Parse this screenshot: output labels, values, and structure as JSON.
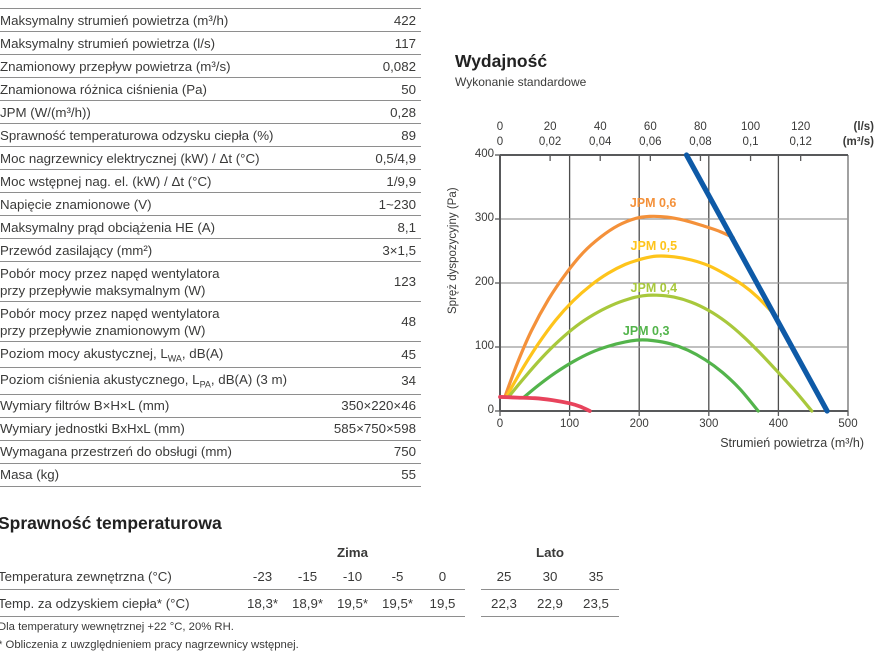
{
  "spec_table": {
    "rows": [
      {
        "label": "Maksymalny strumień powietrza (m³/h)",
        "value": "422"
      },
      {
        "label": "Maksymalny strumień powietrza (l/s)",
        "value": "117"
      },
      {
        "label": "Znamionowy przepływ powietrza (m³/s)",
        "value": "0,082"
      },
      {
        "label": "Znamionowa różnica ciśnienia (Pa)",
        "value": "50"
      },
      {
        "label": "JPM (W/(m³/h))",
        "value": "0,28"
      },
      {
        "label": "Sprawność temperaturowa odzysku ciepła (%)",
        "value": "89"
      },
      {
        "label": "Moc nagrzewnicy elektrycznej (kW) / Δt (°C)",
        "value": "0,5/4,9"
      },
      {
        "label": "Moc wstępnej nag. el. (kW) / Δt (°C)",
        "value": "1/9,9"
      },
      {
        "label": "Napięcie znamionowe (V)",
        "value": "1~230"
      },
      {
        "label": "Maksymalny prąd obciążenia HE (A)",
        "value": "8,1"
      },
      {
        "label": "Przewód zasilający (mm²)",
        "value": "3×1,5"
      },
      {
        "label": "Pobór mocy przez napęd wentylatora\nprzy przepływie maksymalnym (W)",
        "value": "123"
      },
      {
        "label": "Pobór mocy przez napęd wentylatora\nprzy przepływie znamionowym (W)",
        "value": "48"
      },
      {
        "label": "Poziom mocy akustycznej, L[WA], dB(A)",
        "value": "45"
      },
      {
        "label": "Poziom ciśnienia akustycznego, L[PA], dB(A) (3 m)",
        "value": "34"
      },
      {
        "label": "Wymiary filtrów B×H×L (mm)",
        "value": "350×220×46"
      },
      {
        "label": "Wymiary jednostki BxHxL (mm)",
        "value": "585×750×598"
      },
      {
        "label": "Wymagana przestrzeń do obsługi (mm)",
        "value": "750"
      },
      {
        "label": "Masa (kg)",
        "value": "55"
      }
    ]
  },
  "chart": {
    "title": "Wydajność",
    "subtitle": "Wykonanie standardowe",
    "y_axis_label": "Spręż dyspozycyjny (Pa)",
    "x_axis_label": "Strumień powietrza (m³/h)",
    "top_unit_ls": "(l/s)",
    "top_unit_m3s": "(m³/s)"
  },
  "chart_data": {
    "type": "line",
    "title": "Wydajność",
    "subtitle": "Wykonanie standardowe",
    "xlabel": "Strumień powietrza (m³/h)",
    "ylabel": "Spręż dyspozycyjny (Pa)",
    "xlim": [
      0,
      500
    ],
    "ylim": [
      0,
      400
    ],
    "grid": true,
    "x_ticks_bottom": [
      0,
      100,
      200,
      300,
      400,
      500
    ],
    "y_ticks": [
      400,
      300,
      200,
      100,
      0
    ],
    "top_axis": {
      "positions_m3h": [
        0,
        72,
        144,
        216,
        288,
        360,
        432
      ],
      "ticks_ls": [
        "0",
        "20",
        "40",
        "60",
        "80",
        "100",
        "120"
      ],
      "ticks_m3s": [
        "0",
        "0,02",
        "0,04",
        "0,06",
        "0,08",
        "0,1",
        "0,12"
      ],
      "unit_ls": "(l/s)",
      "unit_m3s": "(m³/s)"
    },
    "series": [
      {
        "name": "JPM 0,6",
        "color": "#F4913A",
        "width": 3.2,
        "label_at": [
          220,
          325
        ],
        "points": [
          [
            8,
            25
          ],
          [
            25,
            75
          ],
          [
            45,
            125
          ],
          [
            70,
            175
          ],
          [
            95,
            215
          ],
          [
            120,
            248
          ],
          [
            145,
            272
          ],
          [
            170,
            290
          ],
          [
            195,
            301
          ],
          [
            215,
            304
          ],
          [
            240,
            303
          ],
          [
            265,
            298
          ],
          [
            290,
            290
          ],
          [
            315,
            281
          ],
          [
            335,
            271
          ]
        ]
      },
      {
        "name": "JPM 0,5",
        "color": "#FEC41B",
        "width": 3.2,
        "label_at": [
          221,
          258
        ],
        "points": [
          [
            10,
            24
          ],
          [
            30,
            62
          ],
          [
            55,
            105
          ],
          [
            80,
            142
          ],
          [
            105,
            172
          ],
          [
            130,
            196
          ],
          [
            155,
            215
          ],
          [
            180,
            229
          ],
          [
            205,
            238
          ],
          [
            225,
            242
          ],
          [
            250,
            241
          ],
          [
            275,
            236
          ],
          [
            300,
            227
          ],
          [
            325,
            213
          ],
          [
            350,
            196
          ],
          [
            370,
            178
          ],
          [
            395,
            150
          ]
        ]
      },
      {
        "name": "JPM 0,4",
        "color": "#A8C83C",
        "width": 3.2,
        "label_at": [
          221,
          192
        ],
        "points": [
          [
            13,
            23
          ],
          [
            35,
            52
          ],
          [
            60,
            83
          ],
          [
            85,
            110
          ],
          [
            110,
            133
          ],
          [
            135,
            151
          ],
          [
            160,
            165
          ],
          [
            185,
            175
          ],
          [
            205,
            180
          ],
          [
            225,
            181
          ],
          [
            250,
            178
          ],
          [
            275,
            170
          ],
          [
            300,
            157
          ],
          [
            325,
            139
          ],
          [
            350,
            116
          ],
          [
            375,
            89
          ],
          [
            400,
            60
          ],
          [
            425,
            30
          ],
          [
            448,
            0
          ]
        ]
      },
      {
        "name": "JPM 0,3",
        "color": "#53B44B",
        "width": 3.2,
        "label_at": [
          210,
          125
        ],
        "points": [
          [
            35,
            22
          ],
          [
            55,
            40
          ],
          [
            80,
            60
          ],
          [
            105,
            77
          ],
          [
            130,
            91
          ],
          [
            155,
            101
          ],
          [
            180,
            108
          ],
          [
            200,
            111
          ],
          [
            220,
            110
          ],
          [
            245,
            105
          ],
          [
            270,
            95
          ],
          [
            295,
            80
          ],
          [
            320,
            60
          ],
          [
            345,
            34
          ],
          [
            371,
            0
          ]
        ]
      },
      {
        "name": "max-limit-line",
        "color": "#0E5AA7",
        "width": 5.2,
        "label_at": null,
        "points": [
          [
            268,
            400
          ],
          [
            470,
            0
          ]
        ]
      },
      {
        "name": "min-limit-line",
        "color": "#E8435C",
        "width": 3.8,
        "label_at": null,
        "points": [
          [
            0,
            22
          ],
          [
            25,
            21
          ],
          [
            50,
            20
          ],
          [
            75,
            17
          ],
          [
            100,
            12
          ],
          [
            115,
            7
          ],
          [
            129,
            0
          ]
        ]
      }
    ]
  },
  "efficiency": {
    "heading": "Sprawność temperaturowa",
    "group_winter": "Zima",
    "group_summer": "Lato",
    "row1_label": "Temperatura zewnętrzna (°C)",
    "row2_label": "Temp. za odzyskiem ciepła* (°C)",
    "winter_temps": [
      "-23",
      "-15",
      "-10",
      "-5",
      "0"
    ],
    "winter_values": [
      "18,3*",
      "18,9*",
      "19,5*",
      "19,5*",
      "19,5"
    ],
    "summer_temps": [
      "25",
      "30",
      "35"
    ],
    "summer_values": [
      "22,3",
      "22,9",
      "23,5"
    ]
  },
  "footnotes": [
    "Dla temperatury wewnętrznej +22 °C, 20% RH.",
    "* Obliczenia z uwzględnieniem pracy nagrzewnicy wstępnej."
  ]
}
